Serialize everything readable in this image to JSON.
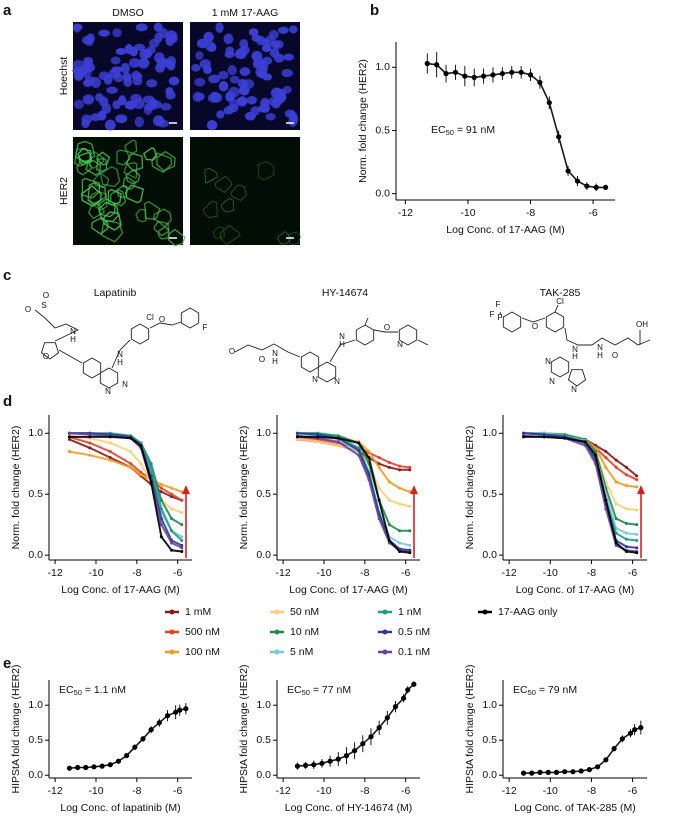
{
  "panel_labels": [
    "a",
    "b",
    "c",
    "d",
    "e"
  ],
  "microscopy": {
    "columns": [
      "DMSO",
      "1 mM 17-AAG"
    ],
    "rows": [
      "Hoechst",
      "HER2"
    ]
  },
  "compounds": [
    {
      "name": "Lapatinib",
      "atoms": [
        "O",
        "S",
        "O",
        "N",
        "H",
        "O",
        "N",
        "H",
        "N",
        "N",
        "Cl",
        "O",
        "F"
      ]
    },
    {
      "name": "HY-14674",
      "atoms": [
        "O",
        "O",
        "N",
        "H",
        "N",
        "H",
        "N",
        "N",
        "O",
        "N"
      ]
    },
    {
      "name": "TAK-285",
      "atoms": [
        "F",
        "F",
        "F",
        "O",
        "Cl",
        "N",
        "H",
        "N",
        "N",
        "N",
        "N",
        "H",
        "O",
        "OH"
      ]
    }
  ],
  "chart_data": [
    {
      "type": "line",
      "xlabel": "Log Conc. of 17-AAG (M)",
      "ylabel": "Norm. fold change (HER2)",
      "annotation": {
        "text": "EC",
        "sub": "50",
        "rest": " = 91 nM"
      },
      "x": [
        -11.3,
        -11,
        -10.7,
        -10.4,
        -10.1,
        -9.8,
        -9.5,
        -9.2,
        -8.9,
        -8.6,
        -8.3,
        -8,
        -7.7,
        -7.4,
        -7.1,
        -6.8,
        -6.5,
        -6.2,
        -5.9,
        -5.6
      ],
      "series": [
        {
          "color": "#000000",
          "values": [
            1.03,
            1.02,
            0.95,
            0.96,
            0.93,
            0.92,
            0.93,
            0.94,
            0.95,
            0.96,
            0.96,
            0.94,
            0.88,
            0.72,
            0.45,
            0.18,
            0.1,
            0.06,
            0.05,
            0.05
          ],
          "errors": [
            0.08,
            0.1,
            0.07,
            0.06,
            0.08,
            0.07,
            0.06,
            0.06,
            0.05,
            0.05,
            0.05,
            0.05,
            0.05,
            0.05,
            0.05,
            0.04,
            0.04,
            0.03,
            0.03,
            0.02
          ]
        }
      ],
      "xlim": [
        -12.3,
        -5.3
      ],
      "ylim": [
        -0.05,
        1.2
      ],
      "xticks": [
        -12,
        -10,
        -8,
        -6
      ],
      "yticks": [
        {
          "value": 0,
          "label": "0.0"
        },
        0.5,
        {
          "value": 1,
          "label": "1.0"
        }
      ]
    },
    {
      "type": "line",
      "xlabel": "Log Conc. of 17-AAG (M)",
      "ylabel": "Norm. fold change (HER2)",
      "x": [
        -11.3,
        -10.3,
        -9.3,
        -8.3,
        -7.8,
        -7.3,
        -6.8,
        -6.3,
        -5.8
      ],
      "series": [
        {
          "name": "1 mM",
          "color": "#8b1a1a",
          "values": [
            0.95,
            0.88,
            0.8,
            0.72,
            0.65,
            0.58,
            0.52,
            0.48,
            0.45
          ]
        },
        {
          "name": "500 nM",
          "color": "#e8402a",
          "values": [
            0.97,
            0.92,
            0.85,
            0.75,
            0.68,
            0.62,
            0.55,
            0.5,
            0.45
          ]
        },
        {
          "name": "100 nM",
          "color": "#f39c1f",
          "values": [
            0.85,
            0.82,
            0.78,
            0.72,
            0.66,
            0.62,
            0.58,
            0.55,
            0.52
          ]
        },
        {
          "name": "50 nM",
          "color": "#f7d07a",
          "values": [
            0.98,
            0.96,
            0.92,
            0.85,
            0.75,
            0.6,
            0.45,
            0.38,
            0.35
          ]
        },
        {
          "name": "10 nM",
          "color": "#1d8a4c",
          "values": [
            1,
            1,
            0.99,
            0.97,
            0.92,
            0.75,
            0.45,
            0.3,
            0.25
          ]
        },
        {
          "name": "5 nM",
          "color": "#79c7d9",
          "values": [
            1,
            1,
            0.99,
            0.96,
            0.9,
            0.7,
            0.35,
            0.2,
            0.15
          ]
        },
        {
          "name": "1 nM",
          "color": "#1a9e8a",
          "values": [
            1,
            1,
            1,
            0.98,
            0.92,
            0.72,
            0.38,
            0.2,
            0.12
          ]
        },
        {
          "name": "0.5 nM",
          "color": "#2b3a8f",
          "values": [
            1,
            1,
            0.99,
            0.97,
            0.9,
            0.65,
            0.3,
            0.12,
            0.08
          ]
        },
        {
          "name": "0.1 nM",
          "color": "#6a3fa0",
          "values": [
            1,
            0.99,
            0.98,
            0.96,
            0.88,
            0.6,
            0.25,
            0.1,
            0.06
          ]
        },
        {
          "name": "17-AAG only",
          "color": "#000000",
          "values": [
            0.97,
            0.97,
            0.97,
            0.96,
            0.9,
            0.6,
            0.15,
            0.04,
            0.03
          ]
        }
      ],
      "xlim": [
        -12.3,
        -5.3
      ],
      "ylim": [
        -0.04,
        1.15
      ],
      "xticks": [
        -12,
        -10,
        -8,
        -6
      ],
      "yticks": [
        {
          "value": 0,
          "label": "0.0"
        },
        0.5,
        {
          "value": 1,
          "label": "1.0"
        }
      ]
    },
    {
      "type": "line",
      "xlabel": "Log Conc. of 17-AAG (M)",
      "ylabel": "Norm. fold change (HER2)",
      "x": [
        -11.3,
        -10.3,
        -9.3,
        -8.3,
        -7.8,
        -7.3,
        -6.8,
        -6.3,
        -5.8
      ],
      "series": [
        {
          "values": [
            0.95,
            0.93,
            0.9,
            0.85,
            0.8,
            0.75,
            0.72,
            0.7,
            0.7
          ]
        },
        {
          "values": [
            0.97,
            0.95,
            0.92,
            0.88,
            0.84,
            0.8,
            0.76,
            0.73,
            0.72
          ]
        },
        {
          "values": [
            1,
            0.98,
            0.96,
            0.93,
            0.85,
            0.72,
            0.6,
            0.55,
            0.52
          ]
        },
        {
          "values": [
            0.95,
            0.93,
            0.9,
            0.85,
            0.75,
            0.55,
            0.45,
            0.42,
            0.4
          ]
        },
        {
          "values": [
            1,
            1,
            0.98,
            0.92,
            0.75,
            0.45,
            0.25,
            0.2,
            0.2
          ]
        },
        {
          "values": [
            1,
            0.98,
            0.95,
            0.85,
            0.65,
            0.35,
            0.15,
            0.1,
            0.08
          ]
        },
        {
          "values": [
            1,
            1,
            0.97,
            0.88,
            0.68,
            0.35,
            0.12,
            0.05,
            0.04
          ]
        },
        {
          "values": [
            1,
            0.99,
            0.96,
            0.86,
            0.66,
            0.33,
            0.12,
            0.05,
            0.04
          ]
        },
        {
          "values": [
            0.98,
            0.96,
            0.93,
            0.82,
            0.62,
            0.3,
            0.1,
            0.04,
            0.03
          ]
        },
        {
          "values": [
            0.97,
            0.97,
            0.96,
            0.92,
            0.8,
            0.45,
            0.12,
            0.03,
            0.02
          ]
        }
      ],
      "xlim": [
        -12.3,
        -5.3
      ],
      "ylim": [
        -0.04,
        1.15
      ],
      "xticks": [
        -12,
        -10,
        -8,
        -6
      ],
      "yticks": [
        {
          "value": 0,
          "label": "0.0"
        },
        0.5,
        {
          "value": 1,
          "label": "1.0"
        }
      ]
    },
    {
      "type": "line",
      "xlabel": "Log Conc. of 17-AAG (M)",
      "ylabel": "Norm. fold change (HER2)",
      "x": [
        -11.3,
        -10.3,
        -9.3,
        -8.3,
        -7.8,
        -7.3,
        -6.8,
        -6.3,
        -5.8
      ],
      "series": [
        {
          "values": [
            1,
            1,
            0.98,
            0.95,
            0.9,
            0.85,
            0.78,
            0.72,
            0.65
          ]
        },
        {
          "values": [
            1,
            0.99,
            0.97,
            0.94,
            0.88,
            0.8,
            0.72,
            0.66,
            0.62
          ]
        },
        {
          "values": [
            1,
            0.99,
            0.98,
            0.95,
            0.88,
            0.72,
            0.6,
            0.57,
            0.56
          ]
        },
        {
          "values": [
            1,
            1,
            0.98,
            0.94,
            0.85,
            0.6,
            0.42,
            0.38,
            0.37
          ]
        },
        {
          "values": [
            1,
            1,
            0.99,
            0.95,
            0.85,
            0.55,
            0.3,
            0.26,
            0.25
          ]
        },
        {
          "values": [
            1,
            1,
            0.98,
            0.94,
            0.82,
            0.5,
            0.22,
            0.18,
            0.17
          ]
        },
        {
          "values": [
            1,
            0.99,
            0.98,
            0.93,
            0.8,
            0.45,
            0.18,
            0.13,
            0.12
          ]
        },
        {
          "values": [
            1,
            0.99,
            0.97,
            0.92,
            0.78,
            0.42,
            0.12,
            0.07,
            0.06
          ]
        },
        {
          "values": [
            0.98,
            0.97,
            0.96,
            0.9,
            0.75,
            0.38,
            0.08,
            0.04,
            0.03
          ]
        },
        {
          "values": [
            0.97,
            0.97,
            0.96,
            0.93,
            0.82,
            0.45,
            0.1,
            0.03,
            0.02
          ]
        }
      ],
      "xlim": [
        -12.3,
        -5.3
      ],
      "ylim": [
        -0.04,
        1.15
      ],
      "xticks": [
        -12,
        -10,
        -8,
        -6
      ],
      "yticks": [
        {
          "value": 0,
          "label": "0.0"
        },
        0.5,
        {
          "value": 1,
          "label": "1.0"
        }
      ]
    },
    {
      "type": "line",
      "xlabel": "Log Conc. of lapatinib (M)",
      "ylabel": "HIPStA fold change (HER2)",
      "annotation": {
        "text": "EC",
        "sub": "50",
        "rest": " = 1.1 nM"
      },
      "x": [
        -11.3,
        -10.9,
        -10.5,
        -10.1,
        -9.7,
        -9.3,
        -8.9,
        -8.5,
        -8.1,
        -7.7,
        -7.3,
        -6.9,
        -6.5,
        -6.1,
        -5.9,
        -5.6
      ],
      "series": [
        {
          "color": "#000000",
          "values": [
            0.1,
            0.11,
            0.11,
            0.12,
            0.13,
            0.15,
            0.2,
            0.28,
            0.4,
            0.52,
            0.65,
            0.75,
            0.85,
            0.9,
            0.93,
            0.95
          ],
          "errors": [
            0.02,
            0.02,
            0.02,
            0.02,
            0.02,
            0.02,
            0.03,
            0.03,
            0.04,
            0.04,
            0.05,
            0.06,
            0.08,
            0.1,
            0.08,
            0.08
          ]
        }
      ],
      "xlim": [
        -12.3,
        -5.3
      ],
      "ylim": [
        -0.04,
        1.36
      ],
      "xticks": [
        -12,
        -10,
        -8,
        -6
      ],
      "yticks": [
        {
          "value": 0,
          "label": "0.0"
        },
        0.5,
        {
          "value": 1,
          "label": "1.0"
        }
      ]
    },
    {
      "type": "line",
      "xlabel": "Log Conc. of HY-14674 (M)",
      "ylabel": "HIPStA fold change (HER2)",
      "annotation": {
        "text": "EC",
        "sub": "50",
        "rest": " = 77 nM"
      },
      "x": [
        -11.3,
        -10.9,
        -10.5,
        -10.1,
        -9.7,
        -9.3,
        -8.9,
        -8.5,
        -8.1,
        -7.7,
        -7.3,
        -6.9,
        -6.5,
        -6.1,
        -5.9,
        -5.6
      ],
      "series": [
        {
          "color": "#000000",
          "values": [
            0.13,
            0.14,
            0.15,
            0.17,
            0.2,
            0.23,
            0.28,
            0.35,
            0.45,
            0.55,
            0.68,
            0.82,
            0.98,
            1.1,
            1.22,
            1.3
          ],
          "errors": [
            0.05,
            0.05,
            0.06,
            0.06,
            0.08,
            0.1,
            0.12,
            0.12,
            0.12,
            0.12,
            0.1,
            0.1,
            0.08,
            0.06,
            0.05,
            0.04
          ]
        }
      ],
      "xlim": [
        -12.3,
        -5.3
      ],
      "ylim": [
        -0.04,
        1.36
      ],
      "xticks": [
        -12,
        -10,
        -8,
        -6
      ],
      "yticks": [
        {
          "value": 0,
          "label": "0.0"
        },
        0.5,
        {
          "value": 1,
          "label": "1.0"
        }
      ]
    },
    {
      "type": "line",
      "xlabel": "Log Conc. of TAK-285 (M)",
      "ylabel": "HIPStA fold change (HER2)",
      "annotation": {
        "text": "EC",
        "sub": "50",
        "rest": " = 79 nM"
      },
      "x": [
        -11.3,
        -10.9,
        -10.5,
        -10.1,
        -9.7,
        -9.3,
        -8.9,
        -8.5,
        -8.1,
        -7.7,
        -7.3,
        -6.9,
        -6.5,
        -6.1,
        -5.9,
        -5.6
      ],
      "series": [
        {
          "color": "#000000",
          "values": [
            0.03,
            0.03,
            0.04,
            0.04,
            0.04,
            0.05,
            0.05,
            0.06,
            0.08,
            0.12,
            0.22,
            0.38,
            0.52,
            0.6,
            0.65,
            0.68
          ],
          "errors": [
            0.01,
            0.01,
            0.01,
            0.01,
            0.01,
            0.01,
            0.01,
            0.02,
            0.02,
            0.02,
            0.03,
            0.04,
            0.05,
            0.06,
            0.08,
            0.1
          ]
        }
      ],
      "xlim": [
        -12.3,
        -5.3
      ],
      "ylim": [
        -0.04,
        1.36
      ],
      "xticks": [
        -12,
        -10,
        -8,
        -6
      ],
      "yticks": [
        {
          "value": 0,
          "label": "0.0"
        },
        0.5,
        {
          "value": 1,
          "label": "1.0"
        }
      ]
    }
  ]
}
